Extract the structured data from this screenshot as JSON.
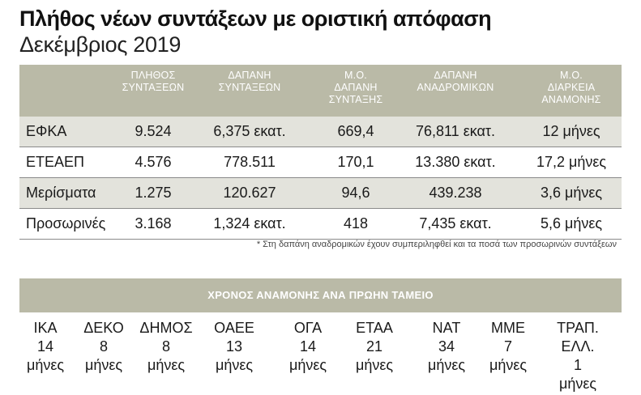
{
  "title": "Πλήθος νέων συντάξεων με οριστική απόφαση",
  "subtitle": "Δεκέμβριος 2019",
  "table": {
    "headers": [
      [
        "ΠΛΗΘΟΣ",
        "ΣΥΝΤΑΞΕΩΝ"
      ],
      [
        "ΔΑΠΑΝΗ",
        "ΣΥΝΤΑΞΕΩΝ"
      ],
      [
        "Μ.Ο.",
        "ΔΑΠΑΝΗ",
        "ΣΥΝΤΑΞΗΣ"
      ],
      [
        "ΔΑΠΑΝΗ",
        "ΑΝΑΔΡΟΜΙΚΩΝ"
      ],
      [
        "Μ.Ο.",
        "ΔΙΑΡΚΕΙΑ",
        "ΑΝΑΜΟΝΗΣ"
      ]
    ],
    "rows": [
      {
        "label": "ΕΦΚΑ",
        "count": "9.524",
        "cost": "6,375 εκατ.",
        "avg_cost": "669,4",
        "retro": "76,811 εκατ.",
        "wait": "12 μήνες"
      },
      {
        "label": "ΕΤΕΑΕΠ",
        "count": "4.576",
        "cost": "778.511",
        "avg_cost": "170,1",
        "retro": "13.380 εκατ.",
        "wait": "17,2 μήνες"
      },
      {
        "label": "Μερίσματα",
        "count": "1.275",
        "cost": "120.627",
        "avg_cost": "94,6",
        "retro": "439.238",
        "wait": "3,6 μήνες"
      },
      {
        "label": "Προσωρινές",
        "count": "3.168",
        "cost": "1,324 εκατ.",
        "avg_cost": "418",
        "retro": "7,435 εκατ.",
        "wait": "5,6 μήνες"
      }
    ]
  },
  "footnote": "* Στη δαπάνη αναδρομικών έχουν συμπεριληφθεί και τα ποσά των προσωρινών συντάξεων",
  "wait_section": {
    "title": "ΧΡΟΝΟΣ ΑΝΑΜΟΝΗΣ ΑΝΑ ΠΡΩΗΝ ΤΑΜΕΙΟ",
    "funds": [
      {
        "lines": [
          "ΙΚΑ",
          "14",
          "μήνες"
        ]
      },
      {
        "lines": [
          "ΔΕΚΟ",
          "8",
          "μήνες"
        ]
      },
      {
        "lines": [
          "ΔΗΜΟΣ",
          "8",
          "μήνες"
        ]
      },
      {
        "lines": [
          "ΟΑΕΕ",
          "13",
          "μήνες"
        ]
      },
      {
        "lines": [
          "ΟΓΑ",
          "14",
          "μήνες"
        ]
      },
      {
        "lines": [
          "ΕΤΑΑ",
          "21",
          "μήνες"
        ]
      },
      {
        "lines": [
          "ΝΑΤ",
          "34",
          "μήνες"
        ]
      },
      {
        "lines": [
          "ΜΜΕ",
          "7",
          "μήνες"
        ]
      },
      {
        "lines": [
          "ΤΡΑΠ.",
          "ΕΛΛ.",
          "1",
          "μήνες"
        ]
      }
    ]
  }
}
